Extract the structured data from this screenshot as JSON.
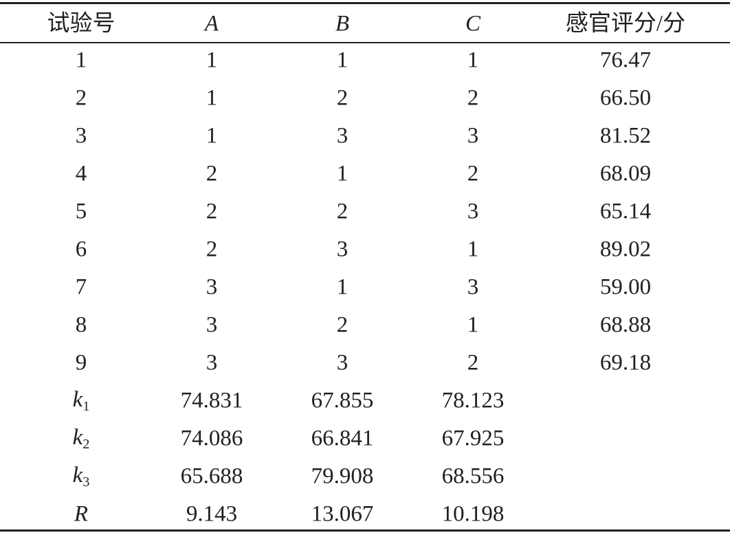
{
  "table": {
    "header": [
      "试验号",
      "A",
      "B",
      "C",
      "感官评分/分"
    ],
    "rows": [
      [
        "1",
        "1",
        "1",
        "1",
        "76.47"
      ],
      [
        "2",
        "1",
        "2",
        "2",
        "66.50"
      ],
      [
        "3",
        "1",
        "3",
        "3",
        "81.52"
      ],
      [
        "4",
        "2",
        "1",
        "2",
        "68.09"
      ],
      [
        "5",
        "2",
        "2",
        "3",
        "65.14"
      ],
      [
        "6",
        "2",
        "3",
        "1",
        "89.02"
      ],
      [
        "7",
        "3",
        "1",
        "3",
        "59.00"
      ],
      [
        "8",
        "3",
        "2",
        "1",
        "68.88"
      ],
      [
        "9",
        "3",
        "3",
        "2",
        "69.18"
      ],
      [
        {
          "main": "k",
          "sub": "1"
        },
        "74.831",
        "67.855",
        "78.123"
      ],
      [
        {
          "main": "k",
          "sub": "2"
        },
        "74.086",
        "66.841",
        "67.925"
      ],
      [
        {
          "main": "k",
          "sub": "3"
        },
        "65.688",
        "79.908",
        "68.556"
      ],
      [
        "R",
        "9.143",
        "13.067",
        "10.198"
      ]
    ]
  }
}
